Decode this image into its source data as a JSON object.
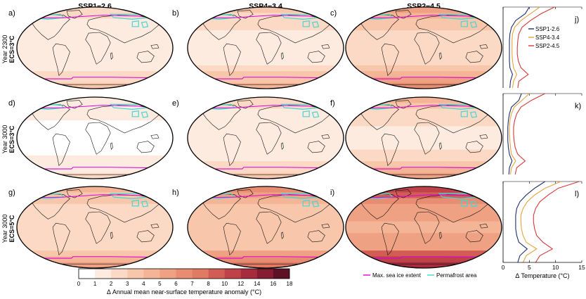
{
  "chart_data": {
    "type": "heatmap",
    "columns": [
      "SSP1−2.6",
      "SSP4−3.4",
      "SSP2−4.5"
    ],
    "rows": [
      {
        "year": "Year 2300",
        "ecs": "ECS=3°C"
      },
      {
        "year": "Year 3000",
        "ecs": "ECS=3°C"
      },
      {
        "year": "Year 3000",
        "ecs": "ECS=5°C"
      }
    ],
    "panel_letters": [
      "a)",
      "b)",
      "c)",
      "d)",
      "e)",
      "f)",
      "g)",
      "h)",
      "i)"
    ],
    "side_panel_letters": [
      "j)",
      "k)",
      "l)"
    ],
    "colorbar": {
      "label": "Δ Annual mean near-surface temperature anomaly (°C)",
      "ticks": [
        0,
        1,
        2,
        3,
        4,
        5,
        6,
        7,
        8,
        10,
        12,
        14,
        16,
        18
      ],
      "colors": [
        "#ffffff",
        "#fdebe0",
        "#fbd9c5",
        "#f8c7ab",
        "#f4b496",
        "#efa183",
        "#e98d72",
        "#e07a63",
        "#d15d55",
        "#bf4248",
        "#a62c3d",
        "#851c32",
        "#5e1125"
      ]
    },
    "map_mean_anomaly": [
      [
        1.6,
        2.3,
        3.6
      ],
      [
        1.2,
        1.6,
        2.6
      ],
      [
        2.9,
        4.0,
        6.6
      ]
    ],
    "legend": {
      "sea_ice": "Max. sea ice extent",
      "permafrost": "Permafrost area",
      "sea_ice_color": "#e000e0",
      "permafrost_color": "#40d8d8"
    },
    "profiles": {
      "xlabel": "Δ Temperature (°C)",
      "xlim": [
        0,
        15
      ],
      "xticks": [
        "0",
        "5",
        "10",
        "15"
      ],
      "series_names": [
        "SSP1-2.6",
        "SSP4-3.4",
        "SSP2-4.5"
      ],
      "series_colors": [
        "#1f2f6e",
        "#e8a33c",
        "#d63a3a"
      ],
      "panels": [
        {
          "lat": [
            90,
            75,
            60,
            45,
            30,
            15,
            0,
            -15,
            -30,
            -45,
            -60,
            -75,
            -90
          ],
          "series": [
            [
              5.0,
              4.2,
              2.4,
              1.6,
              1.3,
              1.2,
              1.2,
              1.2,
              1.2,
              1.3,
              1.8,
              1.4,
              1.3
            ],
            [
              7.0,
              5.2,
              3.4,
              2.2,
              1.8,
              1.7,
              1.7,
              1.7,
              1.8,
              2.0,
              2.6,
              2.0,
              1.8
            ],
            [
              9.8,
              7.2,
              5.2,
              3.6,
              3.0,
              2.8,
              2.7,
              2.7,
              2.9,
              3.4,
              4.8,
              3.0,
              2.8
            ]
          ]
        },
        {
          "lat": [
            90,
            75,
            60,
            45,
            30,
            15,
            0,
            -15,
            -30,
            -45,
            -60,
            -75,
            -90
          ],
          "series": [
            [
              3.5,
              3.0,
              1.6,
              1.2,
              1.0,
              0.9,
              0.9,
              0.9,
              1.0,
              1.2,
              1.7,
              1.2,
              1.1
            ],
            [
              5.0,
              3.6,
              2.1,
              1.6,
              1.3,
              1.2,
              1.2,
              1.3,
              1.4,
              1.6,
              2.4,
              1.6,
              1.4
            ],
            [
              8.0,
              5.4,
              3.4,
              2.6,
              2.2,
              2.0,
              2.0,
              2.1,
              2.3,
              2.8,
              4.2,
              2.6,
              2.3
            ]
          ]
        },
        {
          "lat": [
            90,
            75,
            60,
            45,
            30,
            15,
            0,
            -15,
            -30,
            -45,
            -60,
            -75,
            -90
          ],
          "series": [
            [
              8.0,
              6.0,
              4.4,
              3.2,
              2.6,
              2.4,
              2.4,
              2.4,
              2.6,
              3.0,
              4.6,
              3.2,
              2.8
            ],
            [
              11.0,
              8.0,
              6.0,
              4.6,
              3.8,
              3.4,
              3.4,
              3.5,
              3.8,
              4.4,
              6.4,
              4.4,
              3.8
            ],
            [
              14.5,
              10.5,
              8.6,
              7.0,
              6.2,
              5.8,
              5.8,
              6.0,
              6.4,
              7.6,
              9.4,
              7.0,
              6.2
            ]
          ]
        }
      ]
    }
  }
}
